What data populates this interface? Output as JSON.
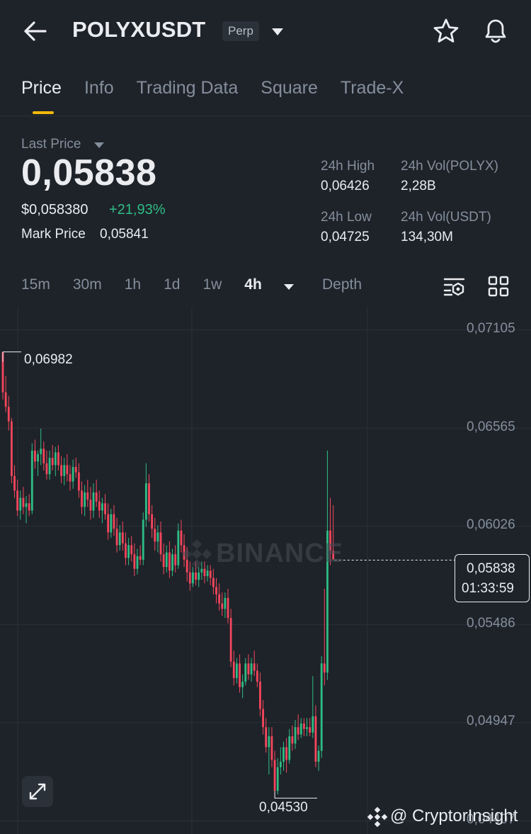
{
  "header": {
    "symbol": "POLYXUSDT",
    "contract_type": "Perp"
  },
  "tabs": [
    "Price",
    "Info",
    "Trading Data",
    "Square",
    "Trade-X"
  ],
  "active_tab": "Price",
  "price_panel": {
    "last_price_label": "Last Price",
    "last_price": "0,05838",
    "usd_price": "$0,058380",
    "change_pct": "+21,93%",
    "mark_price_label": "Mark Price",
    "mark_price": "0,05841",
    "stats": {
      "high_label": "24h High",
      "high_value": "0,06426",
      "vol_polyx_label": "24h Vol(POLYX)",
      "vol_polyx_value": "2,28B",
      "low_label": "24h Low",
      "low_value": "0,04725",
      "vol_usdt_label": "24h Vol(USDT)",
      "vol_usdt_value": "134,30M"
    }
  },
  "intervals": [
    "15m",
    "30m",
    "1h",
    "1d",
    "1w",
    "4h"
  ],
  "active_interval": "4h",
  "depth_label": "Depth",
  "chart": {
    "y_ticks": [
      "0,07105",
      "0,06565",
      "0,06026",
      "0,05486",
      "0,04947",
      "0,04407"
    ],
    "current_price": "0,05838",
    "countdown": "01:33:59",
    "high_marker": "0,06982",
    "low_marker": "0,04530",
    "watermark": "BINANCE",
    "up_color": "#2ebd85",
    "down_color": "#f6465d"
  },
  "chart_data": {
    "type": "candlestick",
    "ylim": [
      0.04407,
      0.07105
    ],
    "candles": [
      [
        0.0698,
        0.0698,
        0.0672,
        0.0676
      ],
      [
        0.0676,
        0.0685,
        0.0665,
        0.0668
      ],
      [
        0.0668,
        0.0674,
        0.0655,
        0.066
      ],
      [
        0.066,
        0.0662,
        0.0626,
        0.063
      ],
      [
        0.063,
        0.0636,
        0.0618,
        0.0622
      ],
      [
        0.0622,
        0.0628,
        0.0608,
        0.0611
      ],
      [
        0.0611,
        0.0622,
        0.0606,
        0.0618
      ],
      [
        0.0618,
        0.0624,
        0.0609,
        0.0613
      ],
      [
        0.0613,
        0.0619,
        0.0604,
        0.0615
      ],
      [
        0.0615,
        0.062,
        0.0608,
        0.0611
      ],
      [
        0.0611,
        0.0648,
        0.0609,
        0.0644
      ],
      [
        0.0644,
        0.065,
        0.0634,
        0.0638
      ],
      [
        0.0638,
        0.0644,
        0.063,
        0.0642
      ],
      [
        0.0642,
        0.0656,
        0.0636,
        0.0645
      ],
      [
        0.0645,
        0.0649,
        0.0633,
        0.0637
      ],
      [
        0.0637,
        0.0644,
        0.0628,
        0.0631
      ],
      [
        0.0631,
        0.0644,
        0.0628,
        0.064
      ],
      [
        0.064,
        0.0647,
        0.0633,
        0.0636
      ],
      [
        0.0636,
        0.0646,
        0.063,
        0.0643
      ],
      [
        0.0643,
        0.0647,
        0.0633,
        0.0636
      ],
      [
        0.0636,
        0.0641,
        0.0626,
        0.063
      ],
      [
        0.063,
        0.064,
        0.0625,
        0.0636
      ],
      [
        0.0636,
        0.0642,
        0.0627,
        0.0631
      ],
      [
        0.0631,
        0.0636,
        0.0622,
        0.0627
      ],
      [
        0.0627,
        0.0639,
        0.0623,
        0.0635
      ],
      [
        0.0635,
        0.064,
        0.0629,
        0.0632
      ],
      [
        0.0632,
        0.0637,
        0.0618,
        0.0622
      ],
      [
        0.0622,
        0.0627,
        0.0609,
        0.0613
      ],
      [
        0.0613,
        0.0625,
        0.0608,
        0.0621
      ],
      [
        0.0621,
        0.0628,
        0.0613,
        0.0617
      ],
      [
        0.0617,
        0.0624,
        0.0606,
        0.0611
      ],
      [
        0.0611,
        0.0626,
        0.0607,
        0.0621
      ],
      [
        0.0621,
        0.0628,
        0.0613,
        0.0616
      ],
      [
        0.0616,
        0.0622,
        0.0607,
        0.0611
      ],
      [
        0.0611,
        0.0618,
        0.0604,
        0.0615
      ],
      [
        0.0615,
        0.062,
        0.0606,
        0.0609
      ],
      [
        0.0609,
        0.0615,
        0.0595,
        0.0599
      ],
      [
        0.0599,
        0.0612,
        0.0596,
        0.0609
      ],
      [
        0.0609,
        0.0614,
        0.0597,
        0.0601
      ],
      [
        0.0601,
        0.0607,
        0.0588,
        0.0592
      ],
      [
        0.0592,
        0.0603,
        0.0589,
        0.0599
      ],
      [
        0.0599,
        0.0605,
        0.0589,
        0.0593
      ],
      [
        0.0593,
        0.0599,
        0.0581,
        0.0585
      ],
      [
        0.0585,
        0.0596,
        0.0581,
        0.0592
      ],
      [
        0.0592,
        0.0597,
        0.0583,
        0.0587
      ],
      [
        0.0587,
        0.0593,
        0.0575,
        0.0579
      ],
      [
        0.0579,
        0.059,
        0.0576,
        0.0586
      ],
      [
        0.0586,
        0.0592,
        0.0581,
        0.0584
      ],
      [
        0.0584,
        0.061,
        0.0581,
        0.0606
      ],
      [
        0.0606,
        0.0637,
        0.0602,
        0.0626
      ],
      [
        0.0626,
        0.0631,
        0.0605,
        0.0609
      ],
      [
        0.0609,
        0.0614,
        0.0596,
        0.0601
      ],
      [
        0.0601,
        0.0607,
        0.0589,
        0.0594
      ],
      [
        0.0594,
        0.0603,
        0.0588,
        0.0599
      ],
      [
        0.0599,
        0.0605,
        0.0583,
        0.0587
      ],
      [
        0.0587,
        0.0593,
        0.0576,
        0.058
      ],
      [
        0.058,
        0.0592,
        0.0577,
        0.0588
      ],
      [
        0.0588,
        0.0594,
        0.0574,
        0.0578
      ],
      [
        0.0578,
        0.059,
        0.0575,
        0.0587
      ],
      [
        0.0587,
        0.0592,
        0.0577,
        0.0581
      ],
      [
        0.0581,
        0.0604,
        0.0579,
        0.06
      ],
      [
        0.06,
        0.0606,
        0.0588,
        0.0592
      ],
      [
        0.0592,
        0.0598,
        0.058,
        0.0584
      ],
      [
        0.0584,
        0.0591,
        0.0572,
        0.0577
      ],
      [
        0.0577,
        0.0583,
        0.0567,
        0.0571
      ],
      [
        0.0571,
        0.058,
        0.0569,
        0.0577
      ],
      [
        0.0577,
        0.0583,
        0.057,
        0.0573
      ],
      [
        0.0573,
        0.058,
        0.0569,
        0.0577
      ],
      [
        0.0577,
        0.0583,
        0.0573,
        0.0579
      ],
      [
        0.0579,
        0.0583,
        0.0571,
        0.0575
      ],
      [
        0.0575,
        0.0581,
        0.0572,
        0.0578
      ],
      [
        0.0578,
        0.0581,
        0.057,
        0.0574
      ],
      [
        0.0574,
        0.0579,
        0.0565,
        0.0569
      ],
      [
        0.0569,
        0.0574,
        0.056,
        0.0565
      ],
      [
        0.0565,
        0.0571,
        0.0556,
        0.056
      ],
      [
        0.056,
        0.0566,
        0.0553,
        0.0557
      ],
      [
        0.0557,
        0.0566,
        0.0552,
        0.0563
      ],
      [
        0.0563,
        0.0568,
        0.0549,
        0.0552
      ],
      [
        0.0552,
        0.0557,
        0.0525,
        0.0528
      ],
      [
        0.0528,
        0.0534,
        0.0515,
        0.0519
      ],
      [
        0.0519,
        0.053,
        0.0516,
        0.0527
      ],
      [
        0.0527,
        0.0532,
        0.0511,
        0.0514
      ],
      [
        0.0514,
        0.0521,
        0.0508,
        0.0517
      ],
      [
        0.0517,
        0.053,
        0.0515,
        0.0527
      ],
      [
        0.0527,
        0.0532,
        0.0518,
        0.0521
      ],
      [
        0.0521,
        0.053,
        0.0517,
        0.0527
      ],
      [
        0.0527,
        0.0534,
        0.052,
        0.0523
      ],
      [
        0.0523,
        0.0527,
        0.0514,
        0.0517
      ],
      [
        0.0517,
        0.0522,
        0.0498,
        0.0502
      ],
      [
        0.0502,
        0.0507,
        0.0488,
        0.0492
      ],
      [
        0.0492,
        0.0497,
        0.0478,
        0.0481
      ],
      [
        0.0481,
        0.0492,
        0.0466,
        0.0487
      ],
      [
        0.0487,
        0.0492,
        0.047,
        0.0474
      ],
      [
        0.0474,
        0.0479,
        0.0453,
        0.0457
      ],
      [
        0.0457,
        0.0475,
        0.0455,
        0.047
      ],
      [
        0.047,
        0.0481,
        0.0466,
        0.0473
      ],
      [
        0.0473,
        0.0484,
        0.0468,
        0.0481
      ],
      [
        0.0481,
        0.0486,
        0.0467,
        0.0474
      ],
      [
        0.0474,
        0.0491,
        0.0472,
        0.0487
      ],
      [
        0.0487,
        0.0493,
        0.0479,
        0.0483
      ],
      [
        0.0483,
        0.0496,
        0.048,
        0.0492
      ],
      [
        0.0492,
        0.0499,
        0.0485,
        0.0488
      ],
      [
        0.0488,
        0.0497,
        0.0486,
        0.0494
      ],
      [
        0.0494,
        0.0497,
        0.0487,
        0.0491
      ],
      [
        0.0491,
        0.0497,
        0.0487,
        0.0492
      ],
      [
        0.0492,
        0.0497,
        0.0487,
        0.0489
      ],
      [
        0.0489,
        0.052,
        0.0486,
        0.0498
      ],
      [
        0.0498,
        0.0504,
        0.047,
        0.0473
      ],
      [
        0.0473,
        0.0482,
        0.0468,
        0.0479
      ],
      [
        0.0479,
        0.0531,
        0.0475,
        0.0527
      ],
      [
        0.0527,
        0.0568,
        0.0515,
        0.0522
      ],
      [
        0.0522,
        0.0644,
        0.0518,
        0.06
      ],
      [
        0.06,
        0.0618,
        0.0581,
        0.0589
      ],
      [
        0.0589,
        0.0614,
        0.0584,
        0.0584
      ]
    ]
  },
  "credit": "@ CryptorInsight"
}
